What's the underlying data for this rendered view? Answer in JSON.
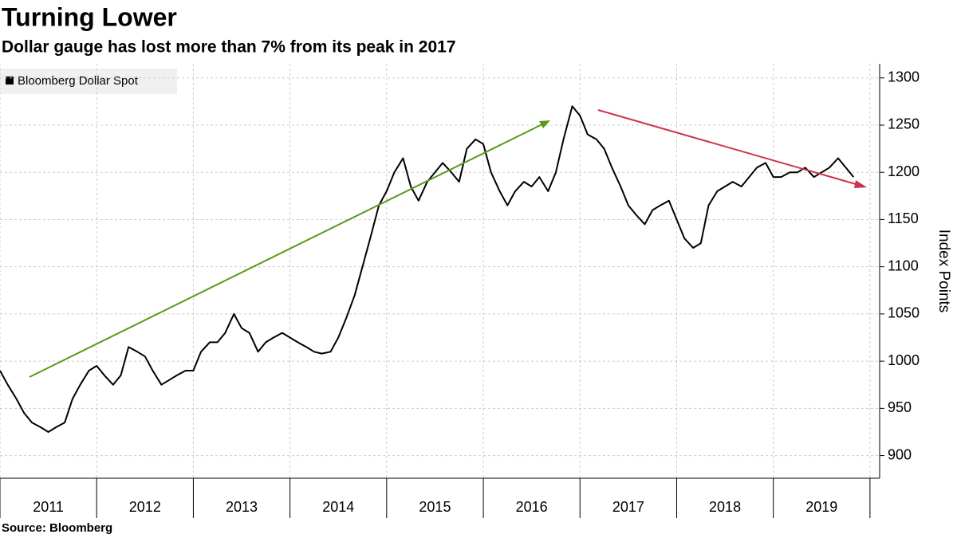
{
  "chart_data": {
    "type": "line",
    "title": "Turning Lower",
    "subtitle": "Dollar gauge has lost more than 7% from its peak in 2017",
    "source": "Source: Bloomberg",
    "y_label": "Index Points",
    "x": [
      2011.0,
      2011.08,
      2011.17,
      2011.25,
      2011.33,
      2011.42,
      2011.5,
      2011.58,
      2011.67,
      2011.75,
      2011.83,
      2011.92,
      2012.0,
      2012.08,
      2012.17,
      2012.25,
      2012.33,
      2012.42,
      2012.5,
      2012.58,
      2012.67,
      2012.75,
      2012.83,
      2012.92,
      2013.0,
      2013.08,
      2013.17,
      2013.25,
      2013.33,
      2013.42,
      2013.5,
      2013.58,
      2013.67,
      2013.75,
      2013.83,
      2013.92,
      2014.0,
      2014.08,
      2014.17,
      2014.25,
      2014.33,
      2014.42,
      2014.5,
      2014.58,
      2014.67,
      2014.75,
      2014.83,
      2014.92,
      2015.0,
      2015.08,
      2015.17,
      2015.25,
      2015.33,
      2015.42,
      2015.5,
      2015.58,
      2015.67,
      2015.75,
      2015.83,
      2015.92,
      2016.0,
      2016.08,
      2016.17,
      2016.25,
      2016.33,
      2016.42,
      2016.5,
      2016.58,
      2016.67,
      2016.75,
      2016.83,
      2016.92,
      2017.0,
      2017.08,
      2017.17,
      2017.25,
      2017.33,
      2017.42,
      2017.5,
      2017.58,
      2017.67,
      2017.75,
      2017.83,
      2017.92,
      2018.0,
      2018.08,
      2018.17,
      2018.25,
      2018.33,
      2018.42,
      2018.5,
      2018.58,
      2018.67,
      2018.75,
      2018.83,
      2018.92,
      2019.0,
      2019.08,
      2019.17,
      2019.25,
      2019.33,
      2019.42,
      2019.5,
      2019.58,
      2019.67,
      2019.75,
      2019.83
    ],
    "series": [
      {
        "name": "Bloomberg Dollar Spot",
        "color": "#000000",
        "values": [
          990,
          975,
          960,
          945,
          935,
          930,
          925,
          930,
          935,
          960,
          975,
          990,
          995,
          985,
          975,
          985,
          1015,
          1010,
          1005,
          990,
          975,
          980,
          985,
          990,
          990,
          1010,
          1020,
          1020,
          1030,
          1050,
          1035,
          1030,
          1010,
          1020,
          1025,
          1030,
          1025,
          1020,
          1015,
          1010,
          1008,
          1010,
          1025,
          1045,
          1070,
          1100,
          1130,
          1165,
          1180,
          1200,
          1215,
          1185,
          1170,
          1190,
          1200,
          1210,
          1200,
          1190,
          1225,
          1235,
          1230,
          1200,
          1180,
          1165,
          1180,
          1190,
          1185,
          1195,
          1180,
          1200,
          1235,
          1270,
          1260,
          1240,
          1235,
          1225,
          1205,
          1185,
          1165,
          1155,
          1145,
          1160,
          1165,
          1170,
          1150,
          1130,
          1120,
          1125,
          1165,
          1180,
          1185,
          1190,
          1185,
          1195,
          1205,
          1210,
          1195,
          1195,
          1200,
          1200,
          1205,
          1195,
          1200,
          1205,
          1215,
          1205,
          1195
        ]
      }
    ],
    "xlim": [
      2011,
      2020.1
    ],
    "xticks": [
      {
        "value": 2011.5,
        "label": "2011"
      },
      {
        "value": 2012.5,
        "label": "2012"
      },
      {
        "value": 2013.5,
        "label": "2013"
      },
      {
        "value": 2014.5,
        "label": "2014"
      },
      {
        "value": 2015.5,
        "label": "2015"
      },
      {
        "value": 2016.5,
        "label": "2016"
      },
      {
        "value": 2017.5,
        "label": "2017"
      },
      {
        "value": 2018.5,
        "label": "2018"
      },
      {
        "value": 2019.5,
        "label": "2019"
      }
    ],
    "ylim": [
      876,
      1315
    ],
    "yticks": [
      900,
      950,
      1000,
      1050,
      1100,
      1150,
      1200,
      1250,
      1300
    ],
    "grid": true
  }
}
